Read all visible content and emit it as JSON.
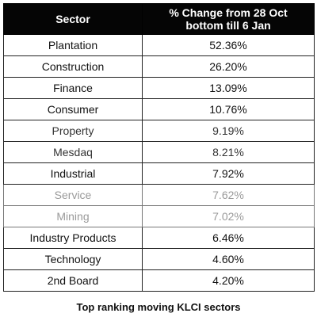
{
  "table": {
    "headers": {
      "sector": "Sector",
      "change_line1": "% Change from 28 Oct",
      "change_line2": "bottom till 6 Jan"
    },
    "rows": [
      {
        "sector": "Plantation",
        "change": "52.36%"
      },
      {
        "sector": "Construction",
        "change": "26.20%"
      },
      {
        "sector": "Finance",
        "change": "13.09%"
      },
      {
        "sector": "Consumer",
        "change": "10.76%"
      },
      {
        "sector": "Property",
        "change": "9.19%"
      },
      {
        "sector": "Mesdaq",
        "change": "8.21%"
      },
      {
        "sector": "Industrial",
        "change": "7.92%"
      },
      {
        "sector": "Service",
        "change": "7.62%"
      },
      {
        "sector": "Mining",
        "change": "7.02%"
      },
      {
        "sector": "Industry Products",
        "change": "6.46%"
      },
      {
        "sector": "Technology",
        "change": "4.60%"
      },
      {
        "sector": "2nd Board",
        "change": "4.20%"
      }
    ]
  },
  "caption": "Top ranking moving KLCI sectors"
}
